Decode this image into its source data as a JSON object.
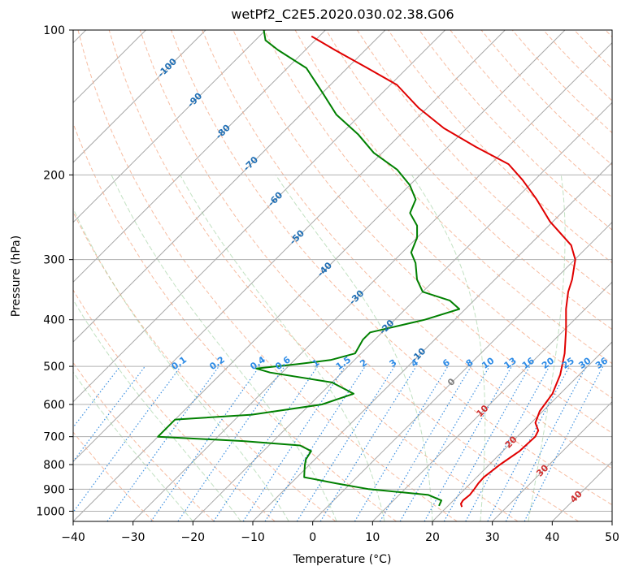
{
  "chart_data": {
    "type": "skew-t log-p",
    "title": "wetPf2_C2E5.2020.030.02.38.G06",
    "xlabel": "Temperature (°C)",
    "ylabel": "Pressure (hPa)",
    "xlim": [
      -40,
      50
    ],
    "ylim": [
      1050,
      100
    ],
    "y_scale": "log",
    "grid": true,
    "x_ticks": [
      -40,
      -30,
      -20,
      -10,
      0,
      10,
      20,
      30,
      40,
      50
    ],
    "y_ticks": [
      100,
      200,
      300,
      400,
      500,
      600,
      700,
      800,
      900,
      1000
    ],
    "isotherm_labels": {
      "upper_blue": [
        "-100",
        "-90",
        "-80",
        "-70",
        "-60",
        "-50",
        "-40",
        "-30",
        "-20",
        "-10"
      ],
      "zero": "0",
      "lower_red": [
        "10",
        "20",
        "30",
        "40"
      ]
    },
    "mixing_ratio_labels": [
      "0.1",
      "0.2",
      "0.4",
      "0.6",
      "1",
      "1.5",
      "2",
      "3",
      "4",
      "6",
      "8",
      "10",
      "13",
      "16",
      "20",
      "25",
      "30",
      "36"
    ],
    "series": [
      {
        "color": "#e00000",
        "points": [
          [
            22.5,
            980
          ],
          [
            21.8,
            965
          ],
          [
            21.6,
            950
          ],
          [
            21.8,
            925
          ],
          [
            21.6,
            900
          ],
          [
            21.3,
            875
          ],
          [
            21.2,
            850
          ],
          [
            21.8,
            800
          ],
          [
            22.8,
            750
          ],
          [
            23.0,
            700
          ],
          [
            22.5,
            680
          ],
          [
            20.7,
            655
          ],
          [
            19.5,
            620
          ],
          [
            18.7,
            570
          ],
          [
            16.8,
            520
          ],
          [
            14.0,
            470
          ],
          [
            10.3,
            420
          ],
          [
            6.8,
            380
          ],
          [
            4.3,
            350
          ],
          [
            2.9,
            330
          ],
          [
            0.1,
            300
          ],
          [
            -3.0,
            280
          ],
          [
            -10.5,
            250
          ],
          [
            -16.4,
            225
          ],
          [
            -22.0,
            205
          ],
          [
            -27.0,
            190
          ],
          [
            -35.3,
            175
          ],
          [
            -43.8,
            160
          ],
          [
            -51.5,
            145
          ],
          [
            -58.9,
            130
          ],
          [
            -66.6,
            120
          ],
          [
            -75.1,
            110
          ],
          [
            -81.3,
            103
          ]
        ]
      },
      {
        "color": "#008000",
        "points": [
          [
            18.5,
            975
          ],
          [
            18.0,
            950
          ],
          [
            14.9,
            925
          ],
          [
            4.0,
            900
          ],
          [
            -2.5,
            875
          ],
          [
            -8.8,
            850
          ],
          [
            -10.0,
            820
          ],
          [
            -10.8,
            800
          ],
          [
            -11.5,
            780
          ],
          [
            -12.0,
            750
          ],
          [
            -14.8,
            730
          ],
          [
            -25.0,
            715
          ],
          [
            -40.0,
            700
          ],
          [
            -40.0,
            645
          ],
          [
            -28.0,
            630
          ],
          [
            -18.0,
            600
          ],
          [
            -14.5,
            570
          ],
          [
            -20.0,
            540
          ],
          [
            -32.0,
            515
          ],
          [
            -35.0,
            505
          ],
          [
            -29.0,
            495
          ],
          [
            -24.0,
            485
          ],
          [
            -21.0,
            470
          ],
          [
            -22.0,
            440
          ],
          [
            -22.0,
            425
          ],
          [
            -15.0,
            400
          ],
          [
            -11.0,
            380
          ],
          [
            -14.0,
            365
          ],
          [
            -20.0,
            350
          ],
          [
            -23.0,
            330
          ],
          [
            -26.0,
            305
          ],
          [
            -28.5,
            290
          ],
          [
            -30.0,
            270
          ],
          [
            -32.0,
            255
          ],
          [
            -35.3,
            240
          ],
          [
            -36.6,
            225
          ],
          [
            -40.0,
            210
          ],
          [
            -44.7,
            195
          ],
          [
            -51.4,
            180
          ],
          [
            -57.0,
            165
          ],
          [
            -64.0,
            150
          ],
          [
            -70.0,
            135
          ],
          [
            -76.8,
            120
          ],
          [
            -84.6,
            110
          ],
          [
            -88.3,
            105
          ],
          [
            -90.3,
            100
          ]
        ]
      }
    ]
  }
}
